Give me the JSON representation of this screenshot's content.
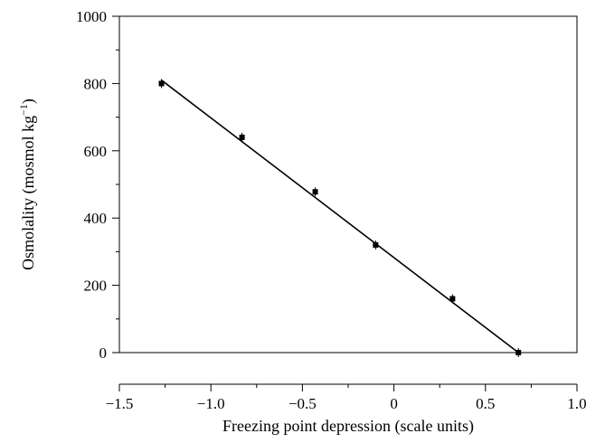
{
  "chart_data": {
    "type": "scatter",
    "xlabel": "Freezing point depression (scale units)",
    "ylabel": "Osmolality (mosmol kg",
    "ylabel_superscript": "−1",
    "ylabel_close": ")",
    "xlim": [
      -1.5,
      1.0
    ],
    "ylim": [
      0,
      1000
    ],
    "x_ticks": [
      -1.5,
      -1.0,
      -0.5,
      0,
      0.5,
      1.0
    ],
    "x_tick_labels": [
      "−1.5",
      "−1.0",
      "−0.5",
      "0",
      "0.5",
      "1.0"
    ],
    "y_ticks": [
      0,
      200,
      400,
      600,
      800,
      1000
    ],
    "y_tick_labels": [
      "0",
      "200",
      "400",
      "600",
      "800",
      "1000"
    ],
    "grid": false,
    "series": [
      {
        "points": [
          {
            "x": -1.27,
            "y": 800
          },
          {
            "x": -0.83,
            "y": 640
          },
          {
            "x": -0.43,
            "y": 478
          },
          {
            "x": -0.1,
            "y": 320
          },
          {
            "x": 0.32,
            "y": 160
          },
          {
            "x": 0.68,
            "y": 0
          }
        ]
      }
    ],
    "fit_line": {
      "x": [
        -1.27,
        0.68
      ],
      "y": [
        810,
        0
      ]
    }
  }
}
